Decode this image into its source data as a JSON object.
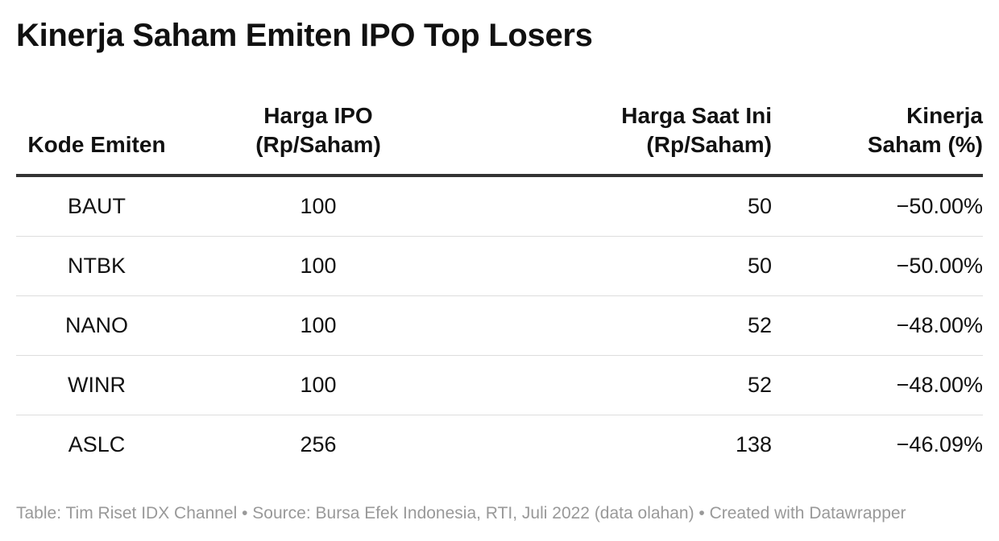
{
  "title": "Kinerja Saham Emiten IPO Top Losers",
  "footer": "Table: Tim Riset IDX Channel • Source: Bursa Efek Indonesia, RTI, Juli 2022 (data olahan) • Created with Datawrapper",
  "chart_data": {
    "type": "table",
    "title": "Kinerja Saham Emiten IPO Top Losers",
    "columns": [
      [
        "Kode Emiten"
      ],
      [
        "Harga IPO",
        "(Rp/Saham)"
      ],
      [
        "Harga Saat Ini",
        "(Rp/Saham)"
      ],
      [
        "Kinerja",
        "Saham (%)"
      ]
    ],
    "rows": [
      [
        "BAUT",
        "100",
        "50",
        "−50.00%"
      ],
      [
        "NTBK",
        "100",
        "50",
        "−50.00%"
      ],
      [
        "NANO",
        "100",
        "52",
        "−48.00%"
      ],
      [
        "WINR",
        "100",
        "52",
        "−48.00%"
      ],
      [
        "ASLC",
        "256",
        "138",
        "−46.09%"
      ]
    ]
  }
}
